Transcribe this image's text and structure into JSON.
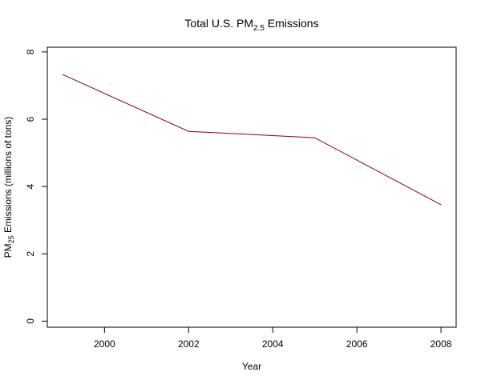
{
  "chart_data": {
    "type": "line",
    "title_main": "Total U.S. PM",
    "title_sub": "2.5",
    "title_rest": " Emissions",
    "xlabel": "Year",
    "ylabel_main": "PM",
    "ylabel_sub": "25",
    "ylabel_rest": " Emissions (millions of tons)",
    "xlim": [
      1998.64,
      2008.36
    ],
    "ylim": [
      -0.18,
      8.14
    ],
    "x_ticks": [
      "2000",
      "2002",
      "2004",
      "2006",
      "2008"
    ],
    "y_ticks": [
      "0",
      "2",
      "4",
      "6",
      "8"
    ],
    "series": [
      {
        "color": "#8b0000",
        "x": [
          1999,
          2002,
          2005,
          2008
        ],
        "y": [
          7.33,
          5.64,
          5.45,
          3.46
        ]
      }
    ],
    "grid": false,
    "legend": "none"
  }
}
